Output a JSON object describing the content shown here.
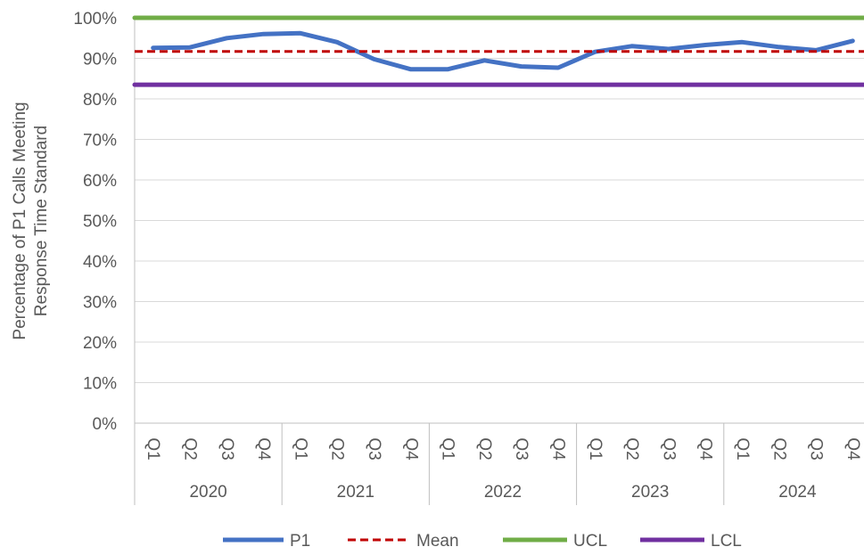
{
  "chart_data": {
    "type": "line",
    "title": "",
    "ylabel_lines": [
      "Percentage of P1 Calls Meeting",
      "Response Time Standard"
    ],
    "xlabel": "",
    "ylim": [
      0,
      100
    ],
    "ytick_labels": [
      "0%",
      "10%",
      "20%",
      "30%",
      "40%",
      "50%",
      "60%",
      "70%",
      "80%",
      "90%",
      "100%"
    ],
    "quarters": [
      "Q1",
      "Q2",
      "Q3",
      "Q4",
      "Q1",
      "Q2",
      "Q3",
      "Q4",
      "Q1",
      "Q2",
      "Q3",
      "Q4",
      "Q1",
      "Q2",
      "Q3",
      "Q4",
      "Q1",
      "Q2",
      "Q3",
      "Q4"
    ],
    "years": [
      "2020",
      "2021",
      "2022",
      "2023",
      "2024"
    ],
    "series": [
      {
        "name": "P1",
        "color": "#4472C4",
        "style": "solid",
        "values": [
          92.6,
          92.7,
          95.0,
          96.0,
          96.2,
          94.0,
          89.8,
          87.3,
          87.3,
          89.5,
          88.0,
          87.7,
          91.6,
          93.0,
          92.3,
          93.3,
          94.0,
          92.8,
          92.0,
          94.3
        ]
      },
      {
        "name": "Mean",
        "color": "#C00000",
        "style": "dashed",
        "values": [
          91.7,
          91.7,
          91.7,
          91.7,
          91.7,
          91.7,
          91.7,
          91.7,
          91.7,
          91.7,
          91.7,
          91.7,
          91.7,
          91.7,
          91.7,
          91.7,
          91.7,
          91.7,
          91.7,
          91.7
        ]
      },
      {
        "name": "UCL",
        "color": "#70AD47",
        "style": "solid",
        "values": [
          100,
          100,
          100,
          100,
          100,
          100,
          100,
          100,
          100,
          100,
          100,
          100,
          100,
          100,
          100,
          100,
          100,
          100,
          100,
          100
        ]
      },
      {
        "name": "LCL",
        "color": "#7030A0",
        "style": "solid",
        "values": [
          83.5,
          83.5,
          83.5,
          83.5,
          83.5,
          83.5,
          83.5,
          83.5,
          83.5,
          83.5,
          83.5,
          83.5,
          83.5,
          83.5,
          83.5,
          83.5,
          83.5,
          83.5,
          83.5,
          83.5
        ]
      }
    ],
    "grid": true,
    "legend_position": "bottom"
  }
}
